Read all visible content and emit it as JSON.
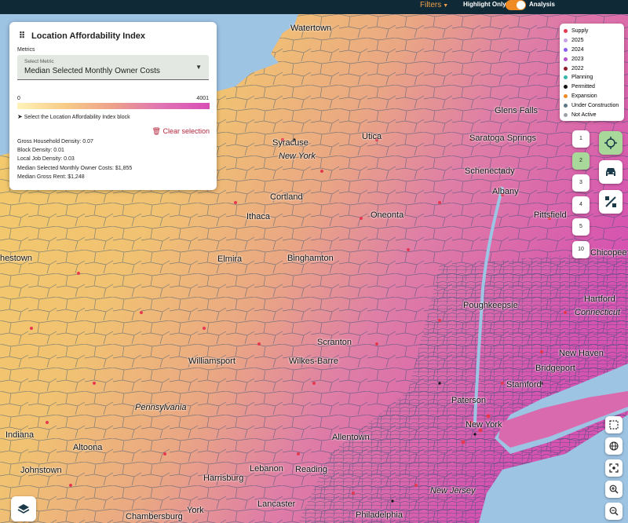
{
  "topbar": {
    "filters_label": "Filters",
    "highlight_label": "Highlight Only",
    "analysis_label": "Analysis",
    "toggle_on": true
  },
  "panel": {
    "title": "Location Affordability Index",
    "metrics_label": "Metrics",
    "select_label": "Select Metric",
    "select_value": "Median Selected Monthly Owner Costs",
    "legend_min": "0",
    "legend_max": "4001",
    "hint": "Select the Location Affordability Index block",
    "clear_label": "Clear selection",
    "stats": [
      "Gross Household Density: 0.07",
      "Block Density: 0.01",
      "Local Job Density: 0.03",
      "Median Selected Monthly Owner Costs: $1,855",
      "Median Gross Rent: $1,248"
    ]
  },
  "legend": {
    "items": [
      {
        "label": "Supply",
        "color": "#e53950"
      },
      {
        "label": "2025",
        "color": "#c8a2e8"
      },
      {
        "label": "2024",
        "color": "#8a5cf0"
      },
      {
        "label": "2023",
        "color": "#b552c9"
      },
      {
        "label": "2022",
        "color": "#8b1d2c"
      },
      {
        "label": "Planning",
        "color": "#35b8a8"
      },
      {
        "label": "Permitted",
        "color": "#111111"
      },
      {
        "label": "Expansion",
        "color": "#f08a24"
      },
      {
        "label": "Under Construction",
        "color": "#5c7888"
      },
      {
        "label": "Not Active",
        "color": "#9aa0a4"
      }
    ]
  },
  "zoom_buttons": [
    "1",
    "2",
    "3",
    "4",
    "5",
    "10"
  ],
  "active_zoom_button": "2",
  "tool_buttons": [
    "crosshair-icon",
    "car-icon",
    "percent-icon"
  ],
  "side_buttons": [
    "select-box-icon",
    "globe-icon",
    "focus-icon",
    "zoom-in-icon",
    "zoom-out-icon"
  ],
  "map": {
    "colors": {
      "water": "#9ec4e4",
      "low": "#f4cc6a",
      "high": "#d653b0",
      "road": "#1e4b73",
      "point": "#e53950"
    },
    "cities": [
      {
        "name": "Watertown",
        "italic": false
      },
      {
        "name": "Syracuse",
        "italic": false
      },
      {
        "name": "New York",
        "italic": true
      },
      {
        "name": "Utica",
        "italic": false
      },
      {
        "name": "Glens Falls",
        "italic": false
      },
      {
        "name": "Saratoga Springs",
        "italic": false
      },
      {
        "name": "Schenectady",
        "italic": false
      },
      {
        "name": "Albany",
        "italic": false
      },
      {
        "name": "Cortland",
        "italic": false
      },
      {
        "name": "Ithaca",
        "italic": false
      },
      {
        "name": "Oneonta",
        "italic": false
      },
      {
        "name": "Pittsfield",
        "italic": false
      },
      {
        "name": "hestown",
        "italic": false
      },
      {
        "name": "Elmira",
        "italic": false
      },
      {
        "name": "Binghamton",
        "italic": false
      },
      {
        "name": "Chicopee",
        "italic": false
      },
      {
        "name": "Hartford",
        "italic": false
      },
      {
        "name": "Connecticut",
        "italic": true
      },
      {
        "name": "Poughkeepsie",
        "italic": false
      },
      {
        "name": "Scranton",
        "italic": false
      },
      {
        "name": "New Haven",
        "italic": false
      },
      {
        "name": "Williamsport",
        "italic": false
      },
      {
        "name": "Wilkes-Barre",
        "italic": false
      },
      {
        "name": "Bridgeport",
        "italic": false
      },
      {
        "name": "Stamford",
        "italic": false
      },
      {
        "name": "Pennsylvania",
        "italic": true
      },
      {
        "name": "Paterson",
        "italic": false
      },
      {
        "name": "New York",
        "italic": false
      },
      {
        "name": "Indiana",
        "italic": false
      },
      {
        "name": "Allentown",
        "italic": false
      },
      {
        "name": "Altoona",
        "italic": false
      },
      {
        "name": "Johnstown",
        "italic": false
      },
      {
        "name": "Lebanon",
        "italic": false
      },
      {
        "name": "Reading",
        "italic": false
      },
      {
        "name": "Harrisburg",
        "italic": false
      },
      {
        "name": "New Jersey",
        "italic": true
      },
      {
        "name": "Lancaster",
        "italic": false
      },
      {
        "name": "York",
        "italic": false
      },
      {
        "name": "Chambersburg",
        "italic": false
      },
      {
        "name": "Philadelphia",
        "italic": false
      }
    ]
  }
}
